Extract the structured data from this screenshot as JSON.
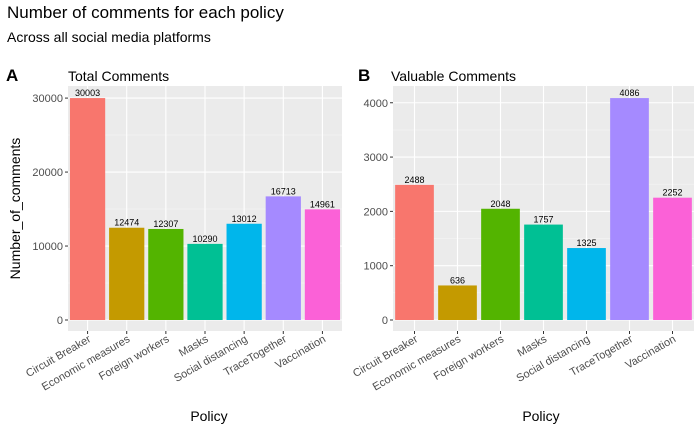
{
  "header": {
    "title": "Number of comments for each policy",
    "subtitle": "Across all social media platforms"
  },
  "chart_data": [
    {
      "type": "bar",
      "tag": "A",
      "title": "Total Comments",
      "xlabel": "Policy",
      "ylabel": "Number_of_comments",
      "categories": [
        "Circuit Breaker",
        "Economic measures",
        "Foreign workers",
        "Masks",
        "Social distancing",
        "TraceTogether",
        "Vaccination"
      ],
      "values": [
        30003,
        12474,
        12307,
        10290,
        13012,
        16713,
        14961
      ],
      "colors": [
        "#f8766d",
        "#c49a00",
        "#53b400",
        "#00c094",
        "#00b6eb",
        "#a58aff",
        "#fb61d7"
      ],
      "yticks": [
        0,
        10000,
        20000,
        30000
      ],
      "ylim": [
        0,
        31500
      ],
      "grid": true
    },
    {
      "type": "bar",
      "tag": "B",
      "title": "Valuable Comments",
      "xlabel": "Policy",
      "ylabel": "",
      "categories": [
        "Circuit Breaker",
        "Economic measures",
        "Foreign workers",
        "Masks",
        "Social distancing",
        "TraceTogether",
        "Vaccination"
      ],
      "values": [
        2488,
        636,
        2048,
        1757,
        1325,
        4086,
        2252
      ],
      "colors": [
        "#f8766d",
        "#c49a00",
        "#53b400",
        "#00c094",
        "#00b6eb",
        "#a58aff",
        "#fb61d7"
      ],
      "yticks": [
        0,
        1000,
        2000,
        3000,
        4000
      ],
      "ylim": [
        0,
        4290
      ],
      "grid": true
    }
  ]
}
